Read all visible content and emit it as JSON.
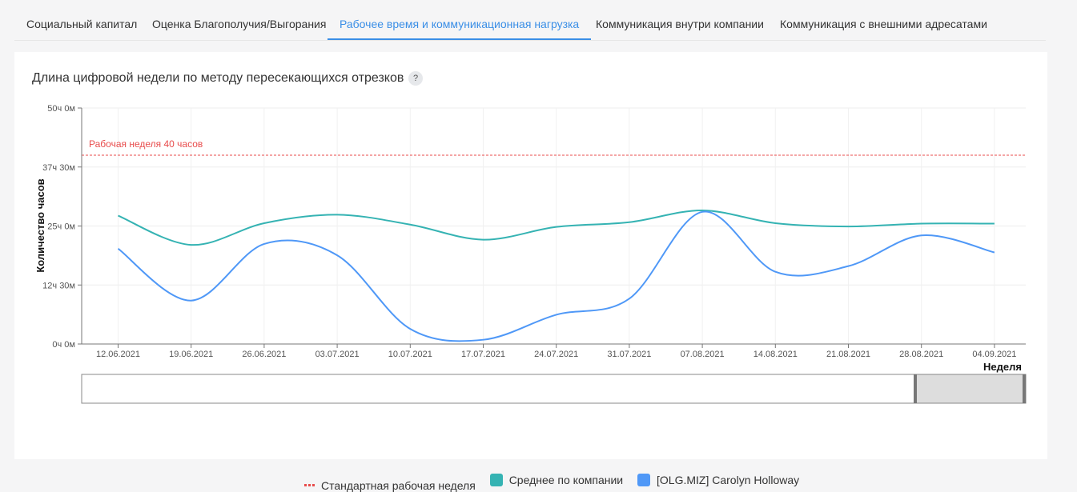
{
  "tabs": [
    {
      "label": "Социальный капитал",
      "active": false
    },
    {
      "label": "Оценка Благополучия/Выгорания",
      "active": false
    },
    {
      "label": "Рабочее время и коммуникационная нагрузка",
      "active": true
    },
    {
      "label": "Коммуникация внутри компании",
      "active": false
    },
    {
      "label": "Коммуникация с внешними адресатами",
      "active": false
    }
  ],
  "card": {
    "title": "Длина цифровой недели по методу пересекающихся отрезков",
    "help": "?"
  },
  "colors": {
    "accent": "#3a8ee6",
    "company": "#35b3b3",
    "person": "#4f98f7",
    "standard": "#e84c4c"
  },
  "chart_data": {
    "type": "line",
    "title": "",
    "xlabel": "Неделя",
    "ylabel": "Количество часов",
    "x": [
      "12.06.2021",
      "19.06.2021",
      "26.06.2021",
      "03.07.2021",
      "10.07.2021",
      "17.07.2021",
      "24.07.2021",
      "31.07.2021",
      "07.08.2021",
      "14.08.2021",
      "21.08.2021",
      "28.08.2021",
      "04.09.2021"
    ],
    "y_ticks": [
      "0ч 0м",
      "12ч 30м",
      "25ч 0м",
      "37ч 30м",
      "50ч 0м"
    ],
    "ylim": [
      0,
      50
    ],
    "grid": true,
    "reference_line": {
      "value": 40,
      "label": "Рабочая неделя 40 часов",
      "name": "Стандартная рабочая неделя"
    },
    "series": [
      {
        "name": "Среднее по компании",
        "values": [
          27.2,
          21.0,
          25.6,
          27.4,
          25.3,
          22.1,
          24.8,
          25.8,
          28.3,
          25.6,
          24.9,
          25.5,
          25.5
        ]
      },
      {
        "name": "[OLG.MIZ] Carolyn Holloway",
        "values": [
          20.2,
          9.2,
          21.2,
          18.8,
          3.2,
          0.9,
          6.2,
          9.6,
          28.0,
          15.3,
          16.5,
          23.0,
          19.4
        ]
      }
    ],
    "legend": "bottom"
  }
}
